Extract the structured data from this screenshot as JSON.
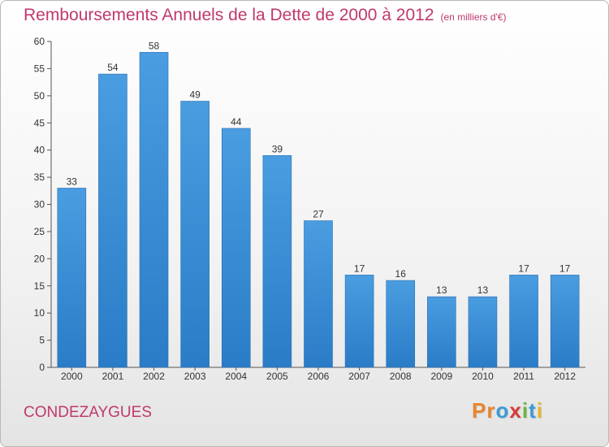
{
  "chart_data": {
    "type": "bar",
    "title": "Remboursements Annuels de la Dette de 2000 à 2012",
    "subtitle": "(en milliers d'€)",
    "categories": [
      "2000",
      "2001",
      "2002",
      "2003",
      "2004",
      "2005",
      "2006",
      "2007",
      "2008",
      "2009",
      "2010",
      "2011",
      "2012"
    ],
    "values": [
      33,
      54,
      58,
      49,
      44,
      39,
      27,
      17,
      16,
      13,
      13,
      17,
      17
    ],
    "ylim": [
      0,
      60
    ],
    "yticks": [
      0,
      5,
      10,
      15,
      20,
      25,
      30,
      35,
      40,
      45,
      50,
      55,
      60
    ],
    "grid": false,
    "bar_color": "#4a9de0",
    "bar_dark_color": "#2a7cc7"
  },
  "footer": {
    "town": "CONDEZAYGUES",
    "logo": "Proxiti"
  },
  "colors": {
    "title": "#c0386e",
    "logo_letters": [
      "#e8852d",
      "#e8852d",
      "#3a9bd6",
      "#d93a3a",
      "#69b63f",
      "#3a9bd6",
      "#e8b42d"
    ]
  }
}
